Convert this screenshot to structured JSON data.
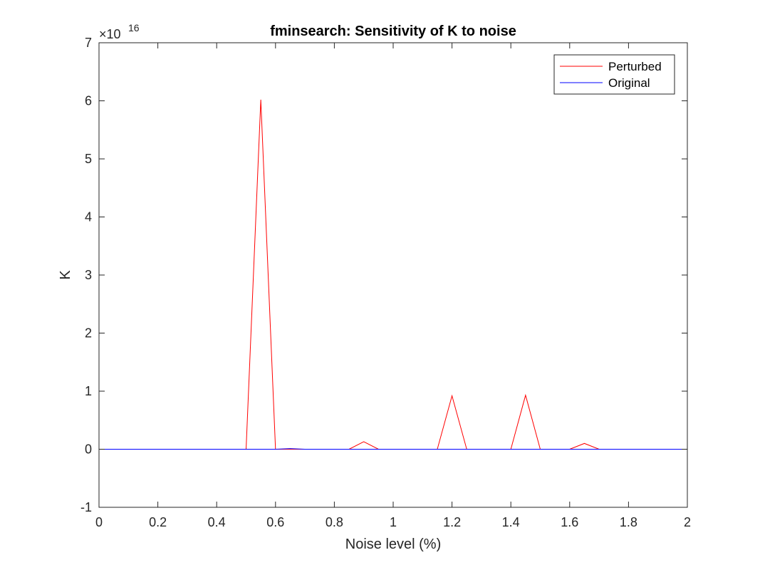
{
  "chart_data": {
    "type": "line",
    "title": "fminsearch: Sensitivity of K to noise",
    "xlabel": "Noise level (%)",
    "ylabel": "K",
    "y_exponent_label": "×10",
    "y_exponent": "16",
    "xlim": [
      0,
      2
    ],
    "ylim": [
      -1,
      7
    ],
    "xticks": [
      0,
      0.2,
      0.4,
      0.6,
      0.8,
      1,
      1.2,
      1.4,
      1.6,
      1.8,
      2
    ],
    "xtick_labels": [
      "0",
      "0.2",
      "0.4",
      "0.6",
      "0.8",
      "1",
      "1.2",
      "1.4",
      "1.6",
      "1.8",
      "2"
    ],
    "yticks": [
      -1,
      0,
      1,
      2,
      3,
      4,
      5,
      6,
      7
    ],
    "ytick_labels": [
      "-1",
      "0",
      "1",
      "2",
      "3",
      "4",
      "5",
      "6",
      "7"
    ],
    "grid": false,
    "legend_position": "top-right",
    "x": [
      0,
      0.05,
      0.1,
      0.15,
      0.2,
      0.25,
      0.3,
      0.35,
      0.4,
      0.45,
      0.5,
      0.55,
      0.6,
      0.65,
      0.7,
      0.75,
      0.8,
      0.85,
      0.9,
      0.95,
      1,
      1.05,
      1.1,
      1.15,
      1.2,
      1.25,
      1.3,
      1.35,
      1.4,
      1.45,
      1.5,
      1.55,
      1.6,
      1.65,
      1.7,
      1.75,
      1.8,
      1.85,
      1.9,
      1.95,
      2
    ],
    "series": [
      {
        "name": "Perturbed",
        "color": "#ff0000",
        "values": [
          0,
          0,
          0,
          0,
          0,
          0,
          0,
          0,
          0,
          0,
          0,
          6.02,
          0,
          0,
          0,
          0,
          0,
          0,
          0.13,
          0,
          0,
          0,
          0,
          0,
          0.92,
          0,
          0,
          0,
          0,
          0.93,
          0,
          0,
          0,
          0.1,
          0,
          0,
          0,
          0,
          0,
          0,
          0
        ]
      },
      {
        "name": "Original",
        "color": "#0000ff",
        "values": [
          0,
          0,
          0,
          0,
          0,
          0,
          0,
          0,
          0,
          0,
          0,
          0,
          0,
          0.01,
          0,
          0,
          0,
          0,
          0,
          0,
          0,
          0,
          0,
          0,
          0,
          0,
          0,
          0,
          0,
          0,
          0,
          0,
          0,
          0,
          0,
          0,
          0,
          0,
          0,
          0,
          0
        ]
      }
    ]
  }
}
